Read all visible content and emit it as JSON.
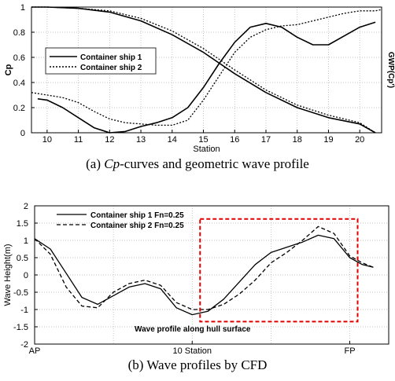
{
  "captions": {
    "a_prefix": "(a) ",
    "a_italic": "Cp",
    "a_rest": "-curves and geometric wave profile",
    "b": "(b) Wave profiles by CFD"
  },
  "chart_data": [
    {
      "type": "line",
      "xlabel": "Station",
      "ylabel": "Cp",
      "ylabel_right": "GWP(Cp')",
      "xlim": [
        9.5,
        20.7
      ],
      "ylim": [
        0,
        1
      ],
      "x_ticks": [
        10,
        11,
        12,
        13,
        14,
        15,
        16,
        17,
        18,
        19,
        20
      ],
      "y_ticks": [
        0,
        0.2,
        0.4,
        0.6,
        0.8,
        1
      ],
      "y_tick_labels": [
        "0",
        "0.2",
        "0.4",
        "0.6",
        "0.8",
        "1"
      ],
      "legend_position": "left",
      "grid": true,
      "series": [
        {
          "name": "Container ship 1",
          "style": "solid",
          "curves": [
            {
              "role": "Cp",
              "x": [
                9.5,
                10,
                11,
                12,
                13,
                14,
                15,
                16,
                17,
                18,
                19,
                20,
                20.5
              ],
              "y": [
                1.0,
                1.0,
                0.99,
                0.96,
                0.89,
                0.78,
                0.64,
                0.47,
                0.32,
                0.2,
                0.12,
                0.07,
                0.0
              ]
            },
            {
              "role": "GWP",
              "x": [
                9.7,
                10,
                10.5,
                11,
                11.5,
                12,
                12.5,
                13,
                13.5,
                14,
                14.5,
                15,
                15.5,
                16,
                16.5,
                17,
                17.5,
                18,
                18.5,
                19,
                19.5,
                20,
                20.5
              ],
              "y": [
                0.27,
                0.26,
                0.2,
                0.12,
                0.04,
                0.0,
                0.01,
                0.05,
                0.08,
                0.12,
                0.2,
                0.36,
                0.55,
                0.72,
                0.84,
                0.87,
                0.84,
                0.76,
                0.7,
                0.7,
                0.77,
                0.84,
                0.88
              ]
            }
          ]
        },
        {
          "name": "Container ship 2",
          "style": "dotted",
          "curves": [
            {
              "role": "Cp",
              "x": [
                9.5,
                10,
                11,
                12,
                13,
                14,
                15,
                16,
                17,
                18,
                19,
                20,
                20.5
              ],
              "y": [
                1.0,
                1.0,
                0.99,
                0.97,
                0.91,
                0.81,
                0.67,
                0.5,
                0.34,
                0.22,
                0.14,
                0.08,
                0.0
              ]
            },
            {
              "role": "GWP",
              "x": [
                9.5,
                10,
                10.5,
                11,
                11.5,
                12,
                12.5,
                13,
                13.5,
                14,
                14.5,
                15,
                15.5,
                16,
                16.5,
                17,
                17.5,
                18,
                18.5,
                19,
                19.5,
                20,
                20.5,
                20.7
              ],
              "y": [
                0.32,
                0.3,
                0.28,
                0.24,
                0.17,
                0.11,
                0.08,
                0.07,
                0.06,
                0.06,
                0.1,
                0.26,
                0.45,
                0.64,
                0.76,
                0.82,
                0.85,
                0.86,
                0.89,
                0.92,
                0.95,
                0.97,
                0.97,
                0.98
              ]
            }
          ]
        }
      ]
    },
    {
      "type": "line",
      "xlabel": "",
      "ylabel": "Wave Height(m)",
      "xlim": [
        0,
        20
      ],
      "ylim": [
        -2,
        2
      ],
      "x_tick_values": [
        0,
        10,
        20
      ],
      "x_tick_labels": [
        "AP",
        "10 Station",
        "FP"
      ],
      "y_ticks": [
        -2,
        -1.5,
        -1,
        -0.5,
        0,
        0.5,
        1,
        1.5,
        2
      ],
      "y_tick_labels": [
        "-2",
        "-1.5",
        "-1",
        "-0.5",
        "0",
        "0.5",
        "1",
        "1.5",
        "2"
      ],
      "legend_position": "top-left",
      "grid": true,
      "annotation": "Wave profile along hull surface",
      "highlight_box": {
        "x": [
          10.5,
          20.5
        ],
        "y": [
          -1.35,
          1.62
        ],
        "color": "#e00000"
      },
      "series": [
        {
          "name": "Container ship 1 Fn=0.25",
          "style": "solid",
          "x": [
            0,
            1,
            2,
            3,
            4,
            5,
            6,
            7,
            8,
            9,
            10,
            11,
            12,
            13,
            14,
            15,
            16,
            17,
            18,
            19,
            20,
            20.8,
            21.5
          ],
          "y": [
            1.05,
            0.75,
            0.05,
            -0.65,
            -0.85,
            -0.6,
            -0.35,
            -0.25,
            -0.4,
            -0.95,
            -1.15,
            -1.05,
            -0.7,
            -0.2,
            0.3,
            0.65,
            0.8,
            0.95,
            1.15,
            1.05,
            0.5,
            0.3,
            0.22
          ]
        },
        {
          "name": "Container ship 2 Fn=0.25",
          "style": "dashed",
          "x": [
            0,
            1,
            2,
            3,
            4,
            5,
            6,
            7,
            8,
            9,
            10,
            11,
            12,
            13,
            14,
            15,
            16,
            17,
            18,
            19,
            20,
            20.8,
            21.5
          ],
          "y": [
            1.05,
            0.6,
            -0.35,
            -0.9,
            -0.95,
            -0.5,
            -0.25,
            -0.15,
            -0.3,
            -0.8,
            -1.0,
            -1.0,
            -0.85,
            -0.55,
            -0.15,
            0.35,
            0.65,
            1.0,
            1.4,
            1.2,
            0.55,
            0.35,
            0.22
          ]
        }
      ]
    }
  ]
}
